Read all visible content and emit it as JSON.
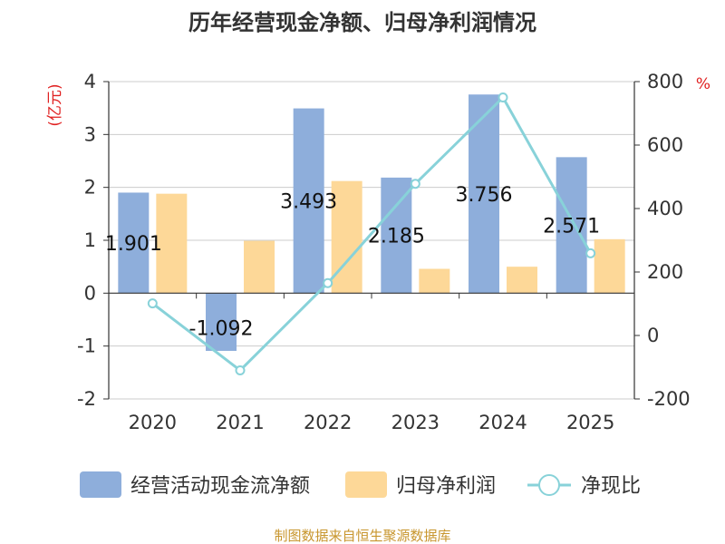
{
  "chart_data": {
    "type": "bar+line",
    "title": "历年经营现金净额、归母净利润情况",
    "categories": [
      "2020",
      "2021",
      "2022",
      "2023",
      "2024",
      "2025"
    ],
    "series": [
      {
        "name": "经营活动现金流净额",
        "type": "bar",
        "axis": "left",
        "values": [
          1.901,
          -1.092,
          3.493,
          2.185,
          3.756,
          2.571
        ],
        "labels": [
          "1.901",
          "-1.092",
          "3.493",
          "2.185",
          "3.756",
          "2.571"
        ]
      },
      {
        "name": "归母净利润",
        "type": "bar",
        "axis": "left",
        "values": [
          1.88,
          0.99,
          2.12,
          0.46,
          0.5,
          1.02
        ]
      },
      {
        "name": "净现比",
        "type": "line",
        "axis": "right",
        "values": [
          101,
          -110,
          165,
          478,
          750,
          259
        ]
      }
    ],
    "left_axis": {
      "unit": "(亿元)",
      "ylim": [
        -2,
        4
      ],
      "ticks": [
        "4",
        "3",
        "2",
        "1",
        "0",
        "-1",
        "-2"
      ]
    },
    "right_axis": {
      "unit": "%",
      "ylim": [
        -200,
        800
      ],
      "ticks": [
        "800",
        "600",
        "400",
        "200",
        "0",
        "-200"
      ]
    },
    "colors": {
      "bar1": "#8eaedb",
      "bar2": "#fdd898",
      "line": "#88d2d9",
      "source": "#c8962e",
      "unit": "#e02020"
    },
    "source": "制图数据来自恒生聚源数据库"
  }
}
